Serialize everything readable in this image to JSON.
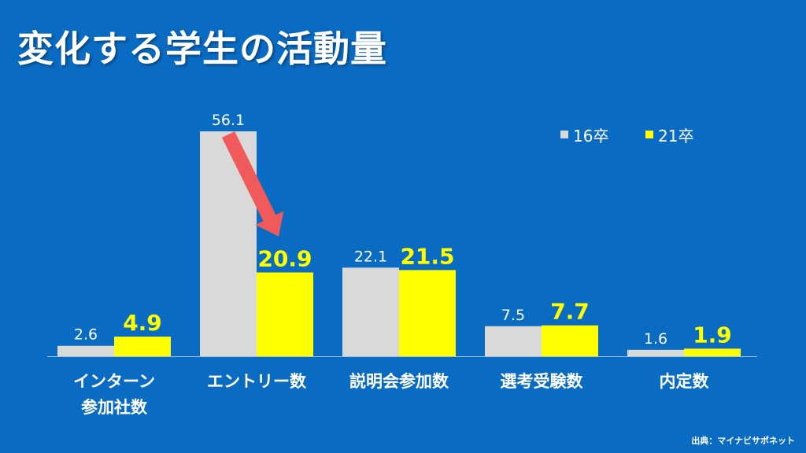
{
  "title": "変化する学生の活動量",
  "source": "出典：マイナビサポネット",
  "colors": {
    "background": "#0a6bc2",
    "series_16": "#d9d9d9",
    "series_21": "#ffff00",
    "arrow": "#f05a5a",
    "label_white": "#ffffff",
    "label_yellow": "#ffff00"
  },
  "chart_data": {
    "type": "bar",
    "categories": [
      [
        "インターン",
        "参加社数"
      ],
      [
        "エントリー数"
      ],
      [
        "説明会参加数"
      ],
      [
        "選考受験数"
      ],
      [
        "内定数"
      ]
    ],
    "series": [
      {
        "name": "16卒",
        "values": [
          2.6,
          56.1,
          22.1,
          7.5,
          1.6
        ]
      },
      {
        "name": "21卒",
        "values": [
          4.9,
          20.9,
          21.5,
          7.7,
          1.9
        ]
      }
    ],
    "ylim": [
      0,
      60
    ],
    "grid": false,
    "legend": "top-right",
    "annotation": "arrow from 16卒 エントリー数 to 21卒 エントリー数"
  }
}
